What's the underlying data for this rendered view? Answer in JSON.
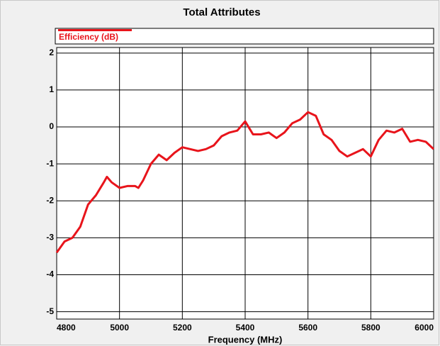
{
  "chart_data": {
    "type": "line",
    "title": "Total Attributes",
    "xlabel": "Frequency  (MHz)",
    "x": [
      4800,
      4825,
      4850,
      4875,
      4900,
      4925,
      4950,
      4960,
      4975,
      5000,
      5025,
      5050,
      5060,
      5075,
      5100,
      5125,
      5150,
      5175,
      5200,
      5225,
      5250,
      5275,
      5300,
      5325,
      5350,
      5375,
      5400,
      5425,
      5450,
      5475,
      5500,
      5525,
      5550,
      5575,
      5600,
      5625,
      5650,
      5675,
      5700,
      5725,
      5750,
      5775,
      5800,
      5825,
      5850,
      5875,
      5900,
      5925,
      5950,
      5975,
      6000
    ],
    "series": [
      {
        "name": "Efficiency (dB)",
        "color": "#e8141b",
        "values": [
          -3.4,
          -3.1,
          -3.0,
          -2.7,
          -2.1,
          -1.85,
          -1.5,
          -1.35,
          -1.5,
          -1.65,
          -1.6,
          -1.6,
          -1.65,
          -1.45,
          -1.0,
          -0.75,
          -0.9,
          -0.7,
          -0.55,
          -0.6,
          -0.65,
          -0.6,
          -0.5,
          -0.25,
          -0.15,
          -0.1,
          0.15,
          -0.2,
          -0.2,
          -0.15,
          -0.3,
          -0.15,
          0.1,
          0.2,
          0.4,
          0.3,
          -0.2,
          -0.35,
          -0.65,
          -0.8,
          -0.7,
          -0.6,
          -0.8,
          -0.35,
          -0.1,
          -0.15,
          -0.05,
          -0.4,
          -0.35,
          -0.4,
          -0.6
        ]
      }
    ],
    "xlim": [
      4800,
      6000
    ],
    "xticks": [
      4800,
      5000,
      5200,
      5400,
      5600,
      5800,
      6000
    ],
    "ylim": [
      -5.2,
      2.15
    ],
    "yticks": [
      2,
      1,
      0,
      -1,
      -2,
      -3,
      -4,
      -5
    ],
    "grid": true
  }
}
